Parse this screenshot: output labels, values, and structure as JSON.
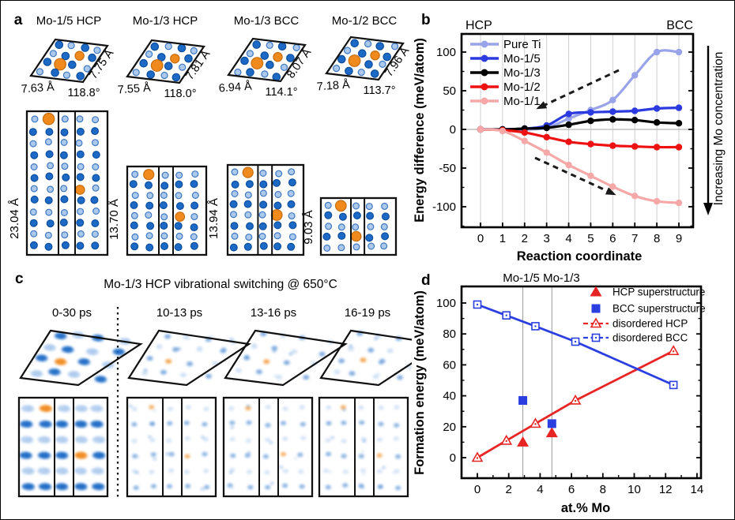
{
  "figure": {
    "panel_a": {
      "label": "a",
      "unit_cells": [
        {
          "title": "Mo-1/5 HCP",
          "a": "7.63 Å",
          "b": "7.75 Å",
          "angle": "118.8°"
        },
        {
          "title": "Mo-1/3 HCP",
          "a": "7.55 Å",
          "b": "7.81 Å",
          "angle": "118.0°"
        },
        {
          "title": "Mo-1/3 BCC",
          "a": "6.94 Å",
          "b": "8.07 Å",
          "angle": "114.1°"
        },
        {
          "title": "Mo-1/2 BCC",
          "a": "7.18 Å",
          "b": "7.96 Å",
          "angle": "113.7°"
        }
      ],
      "side_heights": [
        "23.04 Å",
        "13.70 Å",
        "13.94 Å",
        "9.03 Å"
      ]
    },
    "panel_b": {
      "label": "b",
      "left_phase": "HCP",
      "right_phase": "BCC",
      "right_annotation": "Increasing Mo concentration"
    },
    "panel_c": {
      "label": "c",
      "title": "Mo-1/3 HCP vibrational switching @ 650°C",
      "frames": [
        "0-30 ps",
        "10-13 ps",
        "13-16 ps",
        "16-19 ps"
      ]
    },
    "panel_d": {
      "label": "d",
      "vline_label": "Mo-1/5 Mo-1/3"
    }
  },
  "chart_data": [
    {
      "type": "line",
      "panel": "b",
      "title": "",
      "xlabel": "Reaction coordinate",
      "ylabel": "Energy difference (meV/atom)",
      "x": [
        0,
        1,
        2,
        3,
        4,
        5,
        6,
        7,
        8,
        9
      ],
      "xticks": [
        0,
        1,
        2,
        3,
        4,
        5,
        6,
        7,
        8,
        9
      ],
      "yticks": [
        -100,
        -50,
        0,
        50,
        100
      ],
      "xlim": [
        -0.8,
        9.8
      ],
      "ylim": [
        -126,
        123
      ],
      "grid": "vertical",
      "legend_position": "top-left",
      "annotations": {
        "top_left": "HCP",
        "top_right": "BCC",
        "right_label": "Increasing Mo concentration"
      },
      "series": [
        {
          "name": "Pure Ti",
          "color": "#99a3e9",
          "values": [
            0,
            0,
            0,
            2,
            14,
            25,
            38,
            70,
            100,
            100
          ]
        },
        {
          "name": "Mo-1/5",
          "color": "#2c3be0",
          "values": [
            0,
            0,
            1,
            5,
            20,
            22,
            23,
            24,
            27,
            28
          ]
        },
        {
          "name": "Mo-1/3",
          "color": "#000000",
          "values": [
            0,
            0,
            1,
            2,
            6,
            11,
            13,
            12,
            9,
            8
          ]
        },
        {
          "name": "Mo-1/2",
          "color": "#ee1111",
          "values": [
            0,
            -1,
            -4,
            -10,
            -16,
            -19,
            -21,
            -22,
            -23,
            -23
          ]
        },
        {
          "name": "Mo-1/1",
          "color": "#f6a8a8",
          "values": [
            0,
            -2,
            -15,
            -30,
            -46,
            -60,
            -74,
            -86,
            -93,
            -95
          ]
        }
      ]
    },
    {
      "type": "scatter",
      "panel": "d",
      "title": "",
      "xlabel": "at.% Mo",
      "ylabel": "Formation energy (meV/atom)",
      "xticks": [
        0,
        2,
        4,
        6,
        8,
        10,
        12,
        14
      ],
      "yticks": [
        0,
        20,
        40,
        60,
        80,
        100
      ],
      "xlim": [
        -1,
        14.3
      ],
      "ylim": [
        -13,
        110
      ],
      "vlines": [
        2.9,
        4.75
      ],
      "vline_label": "Mo-1/5 Mo-1/3",
      "legend_position": "top-right",
      "series": [
        {
          "name": "HCP superstructure",
          "color": "#e82525",
          "marker": "triangle-filled",
          "line": false,
          "points": [
            [
              2.9,
              10
            ],
            [
              4.75,
              16
            ]
          ]
        },
        {
          "name": "BCC superstructure",
          "color": "#2b3fe0",
          "marker": "square-filled",
          "line": false,
          "points": [
            [
              2.9,
              37
            ],
            [
              4.75,
              22
            ]
          ]
        },
        {
          "name": "disordered HCP",
          "color": "#e82525",
          "marker": "triangle-open",
          "line": true,
          "points": [
            [
              0,
              0
            ],
            [
              1.85,
              11
            ],
            [
              3.7,
              22
            ],
            [
              6.25,
              37
            ],
            [
              12.5,
              69
            ]
          ]
        },
        {
          "name": "disordered BCC",
          "color": "#2b3fe0",
          "marker": "square-open",
          "line": true,
          "points": [
            [
              0,
              99
            ],
            [
              1.85,
              92
            ],
            [
              3.7,
              85
            ],
            [
              6.25,
              75
            ],
            [
              12.5,
              47
            ]
          ]
        }
      ]
    }
  ],
  "colors": {
    "atom_dark_blue": "#1d6ac6",
    "atom_light_blue": "#abc9ed",
    "atom_orange": "#f18a1d",
    "gridline": "#cfcfcf",
    "zero_line": "#b5b5b5",
    "vline_gray": "#999999",
    "frame_black": "#000000"
  }
}
